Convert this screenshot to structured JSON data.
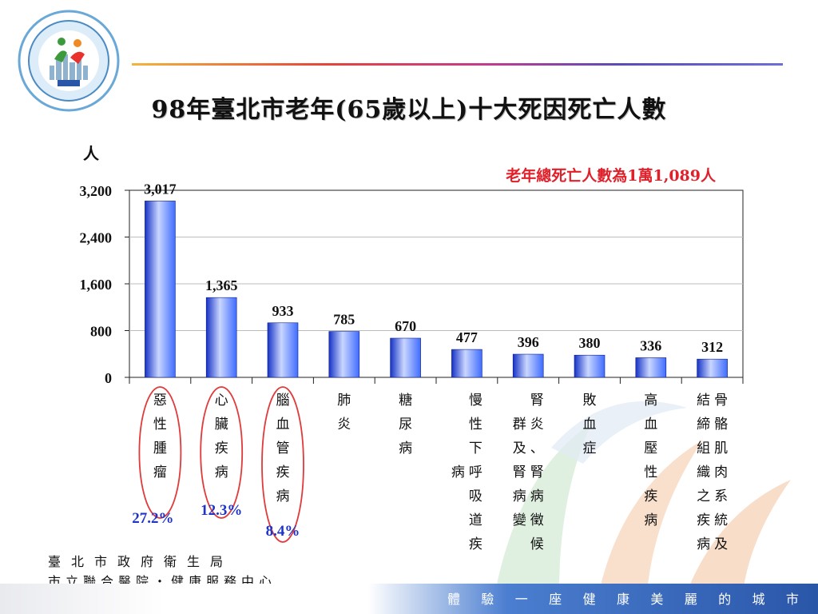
{
  "title": "98年臺北市老年(65歲以上)十大死因死亡人數",
  "y_unit": "人",
  "note": "老年總死亡人數為1萬1,089人",
  "percentages": [
    "27.2%",
    "12.3%",
    "8.4%"
  ],
  "footer": {
    "org_line1": "臺北市政府衛生局",
    "org_line2": "市立聯合醫院・健康服務中心",
    "slogan": [
      "體",
      "驗",
      "一",
      "座",
      "健",
      "康",
      "美",
      "麗",
      "的",
      "城",
      "市"
    ]
  },
  "colors": {
    "bar_light": "#c9d6ff",
    "bar_mid": "#3f6cff",
    "bar_dark": "#1532c6",
    "note": "#e0202a",
    "percent": "#1f35c8",
    "circle": "#e03a3a"
  },
  "chart_data": {
    "type": "bar",
    "categories": [
      "惡性腫瘤",
      "心臟疾病",
      "腦血管疾病",
      "肺炎",
      "糖尿病",
      "慢性下呼吸道疾",
      "腎炎、腎病症候群及腎病變",
      "敗血症",
      "高血壓性疾病",
      "肌肉骨骼系統及結締組織之疾病"
    ],
    "category_columns": [
      [
        [
          "惡",
          "性",
          "腫",
          "瘤"
        ]
      ],
      [
        [
          "心",
          "臟",
          "疾",
          "病"
        ]
      ],
      [
        [
          "腦",
          "血",
          "管",
          "疾",
          "病"
        ]
      ],
      [
        [
          "肺",
          "炎"
        ]
      ],
      [
        [
          "糖",
          "尿",
          "病"
        ]
      ],
      [
        [
          "",
          "",
          "",
          "病"
        ],
        [
          "慢",
          "性",
          "下",
          "呼",
          "吸",
          "道",
          "疾"
        ]
      ],
      [
        [
          "",
          "群",
          "及",
          "腎",
          "病",
          "變"
        ],
        [
          "腎",
          "炎",
          "、",
          "腎",
          "病",
          "徵",
          "候"
        ]
      ],
      [
        [
          "敗",
          "血",
          "症"
        ]
      ],
      [
        [
          "高",
          "血",
          "壓",
          "性",
          "疾",
          "病"
        ]
      ],
      [
        [
          "結",
          "締",
          "組",
          "織",
          "之",
          "疾",
          "病"
        ],
        [
          "骨",
          "骼",
          "肌",
          "肉",
          "系",
          "統",
          "及"
        ]
      ]
    ],
    "values": [
      3017,
      1365,
      933,
      785,
      670,
      477,
      396,
      380,
      336,
      312
    ],
    "value_labels": [
      "3,017",
      "1,365",
      "933",
      "785",
      "670",
      "477",
      "396",
      "380",
      "336",
      "312"
    ],
    "yticks": [
      0,
      800,
      1600,
      2400,
      3200
    ],
    "ytick_labels": [
      "0",
      "800",
      "1,600",
      "2,400",
      "3,200"
    ],
    "ylim": [
      0,
      3200
    ],
    "ylabel": "人",
    "grid": true,
    "highlighted": [
      0,
      1,
      2
    ]
  }
}
